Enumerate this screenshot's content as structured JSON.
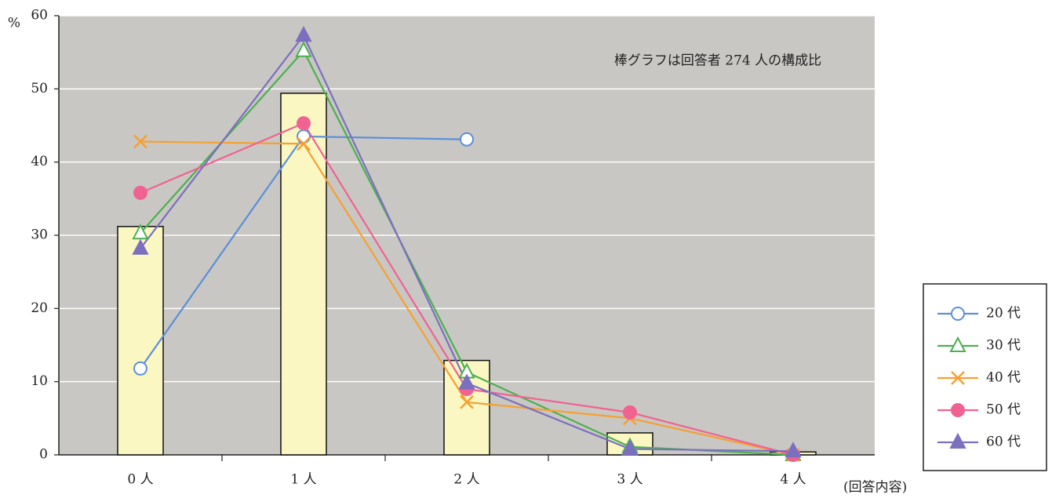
{
  "chart_data": {
    "type": "bar-line",
    "y_label": "%",
    "annotation": "棒グラフは回答者 274 人の構成比",
    "x_label": "(回答内容)",
    "categories": [
      "0 人",
      "1 人",
      "2 人",
      "3 人",
      "4 人"
    ],
    "bars": {
      "values": [
        31.2,
        49.4,
        12.9,
        3.0,
        0.4
      ],
      "color": "#fbf7c2"
    },
    "series": [
      {
        "name": "20 代",
        "color": "#5b8fd8",
        "marker": "circle-open",
        "values": [
          11.8,
          43.5,
          43.1,
          null,
          null
        ]
      },
      {
        "name": "30 代",
        "color": "#4caf50",
        "marker": "triangle-open",
        "values": [
          30.3,
          55.2,
          11.3,
          1.1,
          0
        ]
      },
      {
        "name": "40 代",
        "color": "#f5a030",
        "marker": "x",
        "values": [
          42.8,
          42.5,
          7.2,
          5.0,
          0
        ]
      },
      {
        "name": "50 代",
        "color": "#f06292",
        "marker": "circle",
        "values": [
          35.8,
          45.3,
          9.0,
          5.8,
          0
        ]
      },
      {
        "name": "60 代",
        "color": "#7b6fc0",
        "marker": "triangle",
        "values": [
          28.2,
          57.3,
          9.8,
          0.8,
          0.5
        ]
      }
    ],
    "ylim": [
      0,
      60
    ],
    "yticks": [
      0,
      10,
      20,
      30,
      40,
      50,
      60
    ],
    "grid": true,
    "plot_background": "#c9c7c3"
  }
}
